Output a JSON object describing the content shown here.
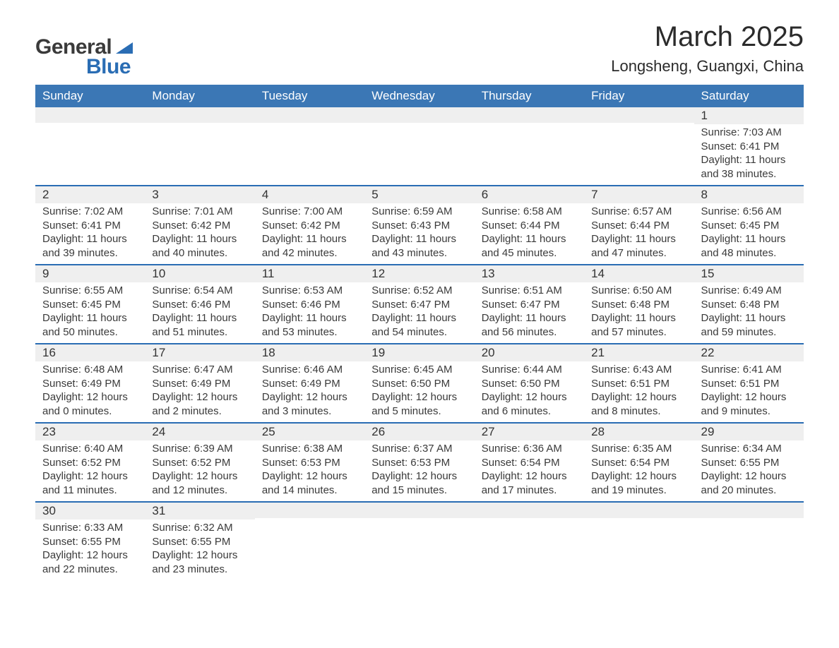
{
  "logo": {
    "general": "General",
    "blue": "Blue"
  },
  "title": "March 2025",
  "location": "Longsheng, Guangxi, China",
  "colors": {
    "header_bg": "#3b77b5",
    "header_text": "#ffffff",
    "day_num_bg": "#efefef",
    "border": "#2a6db4",
    "body_text": "#3a3a3a",
    "logo_blue": "#2a6db4"
  },
  "weekdays": [
    "Sunday",
    "Monday",
    "Tuesday",
    "Wednesday",
    "Thursday",
    "Friday",
    "Saturday"
  ],
  "weeks": [
    [
      null,
      null,
      null,
      null,
      null,
      null,
      {
        "n": "1",
        "sr": "7:03 AM",
        "ss": "6:41 PM",
        "dl": "11 hours and 38 minutes."
      }
    ],
    [
      {
        "n": "2",
        "sr": "7:02 AM",
        "ss": "6:41 PM",
        "dl": "11 hours and 39 minutes."
      },
      {
        "n": "3",
        "sr": "7:01 AM",
        "ss": "6:42 PM",
        "dl": "11 hours and 40 minutes."
      },
      {
        "n": "4",
        "sr": "7:00 AM",
        "ss": "6:42 PM",
        "dl": "11 hours and 42 minutes."
      },
      {
        "n": "5",
        "sr": "6:59 AM",
        "ss": "6:43 PM",
        "dl": "11 hours and 43 minutes."
      },
      {
        "n": "6",
        "sr": "6:58 AM",
        "ss": "6:44 PM",
        "dl": "11 hours and 45 minutes."
      },
      {
        "n": "7",
        "sr": "6:57 AM",
        "ss": "6:44 PM",
        "dl": "11 hours and 47 minutes."
      },
      {
        "n": "8",
        "sr": "6:56 AM",
        "ss": "6:45 PM",
        "dl": "11 hours and 48 minutes."
      }
    ],
    [
      {
        "n": "9",
        "sr": "6:55 AM",
        "ss": "6:45 PM",
        "dl": "11 hours and 50 minutes."
      },
      {
        "n": "10",
        "sr": "6:54 AM",
        "ss": "6:46 PM",
        "dl": "11 hours and 51 minutes."
      },
      {
        "n": "11",
        "sr": "6:53 AM",
        "ss": "6:46 PM",
        "dl": "11 hours and 53 minutes."
      },
      {
        "n": "12",
        "sr": "6:52 AM",
        "ss": "6:47 PM",
        "dl": "11 hours and 54 minutes."
      },
      {
        "n": "13",
        "sr": "6:51 AM",
        "ss": "6:47 PM",
        "dl": "11 hours and 56 minutes."
      },
      {
        "n": "14",
        "sr": "6:50 AM",
        "ss": "6:48 PM",
        "dl": "11 hours and 57 minutes."
      },
      {
        "n": "15",
        "sr": "6:49 AM",
        "ss": "6:48 PM",
        "dl": "11 hours and 59 minutes."
      }
    ],
    [
      {
        "n": "16",
        "sr": "6:48 AM",
        "ss": "6:49 PM",
        "dl": "12 hours and 0 minutes."
      },
      {
        "n": "17",
        "sr": "6:47 AM",
        "ss": "6:49 PM",
        "dl": "12 hours and 2 minutes."
      },
      {
        "n": "18",
        "sr": "6:46 AM",
        "ss": "6:49 PM",
        "dl": "12 hours and 3 minutes."
      },
      {
        "n": "19",
        "sr": "6:45 AM",
        "ss": "6:50 PM",
        "dl": "12 hours and 5 minutes."
      },
      {
        "n": "20",
        "sr": "6:44 AM",
        "ss": "6:50 PM",
        "dl": "12 hours and 6 minutes."
      },
      {
        "n": "21",
        "sr": "6:43 AM",
        "ss": "6:51 PM",
        "dl": "12 hours and 8 minutes."
      },
      {
        "n": "22",
        "sr": "6:41 AM",
        "ss": "6:51 PM",
        "dl": "12 hours and 9 minutes."
      }
    ],
    [
      {
        "n": "23",
        "sr": "6:40 AM",
        "ss": "6:52 PM",
        "dl": "12 hours and 11 minutes."
      },
      {
        "n": "24",
        "sr": "6:39 AM",
        "ss": "6:52 PM",
        "dl": "12 hours and 12 minutes."
      },
      {
        "n": "25",
        "sr": "6:38 AM",
        "ss": "6:53 PM",
        "dl": "12 hours and 14 minutes."
      },
      {
        "n": "26",
        "sr": "6:37 AM",
        "ss": "6:53 PM",
        "dl": "12 hours and 15 minutes."
      },
      {
        "n": "27",
        "sr": "6:36 AM",
        "ss": "6:54 PM",
        "dl": "12 hours and 17 minutes."
      },
      {
        "n": "28",
        "sr": "6:35 AM",
        "ss": "6:54 PM",
        "dl": "12 hours and 19 minutes."
      },
      {
        "n": "29",
        "sr": "6:34 AM",
        "ss": "6:55 PM",
        "dl": "12 hours and 20 minutes."
      }
    ],
    [
      {
        "n": "30",
        "sr": "6:33 AM",
        "ss": "6:55 PM",
        "dl": "12 hours and 22 minutes."
      },
      {
        "n": "31",
        "sr": "6:32 AM",
        "ss": "6:55 PM",
        "dl": "12 hours and 23 minutes."
      },
      null,
      null,
      null,
      null,
      null
    ]
  ],
  "labels": {
    "sunrise": "Sunrise: ",
    "sunset": "Sunset: ",
    "daylight": "Daylight: "
  }
}
